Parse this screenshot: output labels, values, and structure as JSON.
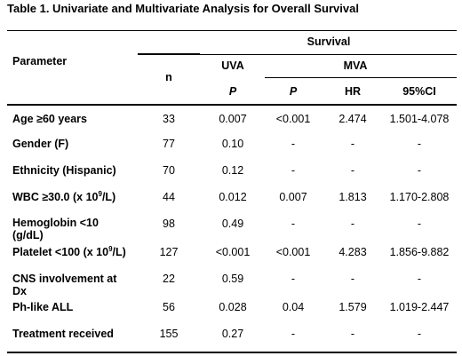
{
  "caption": "Table 1. Univariate and Multivariate Analysis for Overall Survival",
  "headers": {
    "parameter": "Parameter",
    "survival": "Survival",
    "n": "n",
    "uva": "UVA",
    "mva": "MVA",
    "p_uva": "P",
    "p_mva": "P",
    "hr": "HR",
    "ci": "95%CI"
  },
  "rows": [
    {
      "param": "Age ≥60 years",
      "n": "33",
      "uva_p": "0.007",
      "mva_p": "<0.001",
      "hr": "2.474",
      "ci": "1.501-4.078"
    },
    {
      "param": "Gender (F)",
      "n": "77",
      "uva_p": "0.10",
      "mva_p": "-",
      "hr": "-",
      "ci": "-"
    },
    {
      "param": "Ethnicity (Hispanic)",
      "n": "70",
      "uva_p": "0.12",
      "mva_p": "-",
      "hr": "-",
      "ci": "-"
    },
    {
      "param_pre": "WBC ≥30.0 (x 10",
      "param_sup": "9",
      "param_post": "/L)",
      "n": "44",
      "uva_p": "0.012",
      "mva_p": "0.007",
      "hr": "1.813",
      "ci": "1.170-2.808"
    },
    {
      "param_l1": "Hemoglobin <10",
      "param_l2": "(g/dL)",
      "n": "98",
      "uva_p": "0.49",
      "mva_p": "-",
      "hr": "-",
      "ci": "-"
    },
    {
      "param_pre": "Platelet <100 (x 10",
      "param_sup": "9",
      "param_post": "/L)",
      "n": "127",
      "uva_p": "<0.001",
      "mva_p": "<0.001",
      "hr": "4.283",
      "ci": "1.856-9.882"
    },
    {
      "param_l1": "CNS involvement at",
      "param_l2": "Dx",
      "n": "22",
      "uva_p": "0.59",
      "mva_p": "-",
      "hr": "-",
      "ci": "-"
    },
    {
      "param": "Ph-like ALL",
      "n": "56",
      "uva_p": "0.028",
      "mva_p": "0.04",
      "hr": "1.579",
      "ci": "1.019-2.447"
    },
    {
      "param": "Treatment received",
      "n": "155",
      "uva_p": "0.27",
      "mva_p": "-",
      "hr": "-",
      "ci": "-"
    }
  ]
}
